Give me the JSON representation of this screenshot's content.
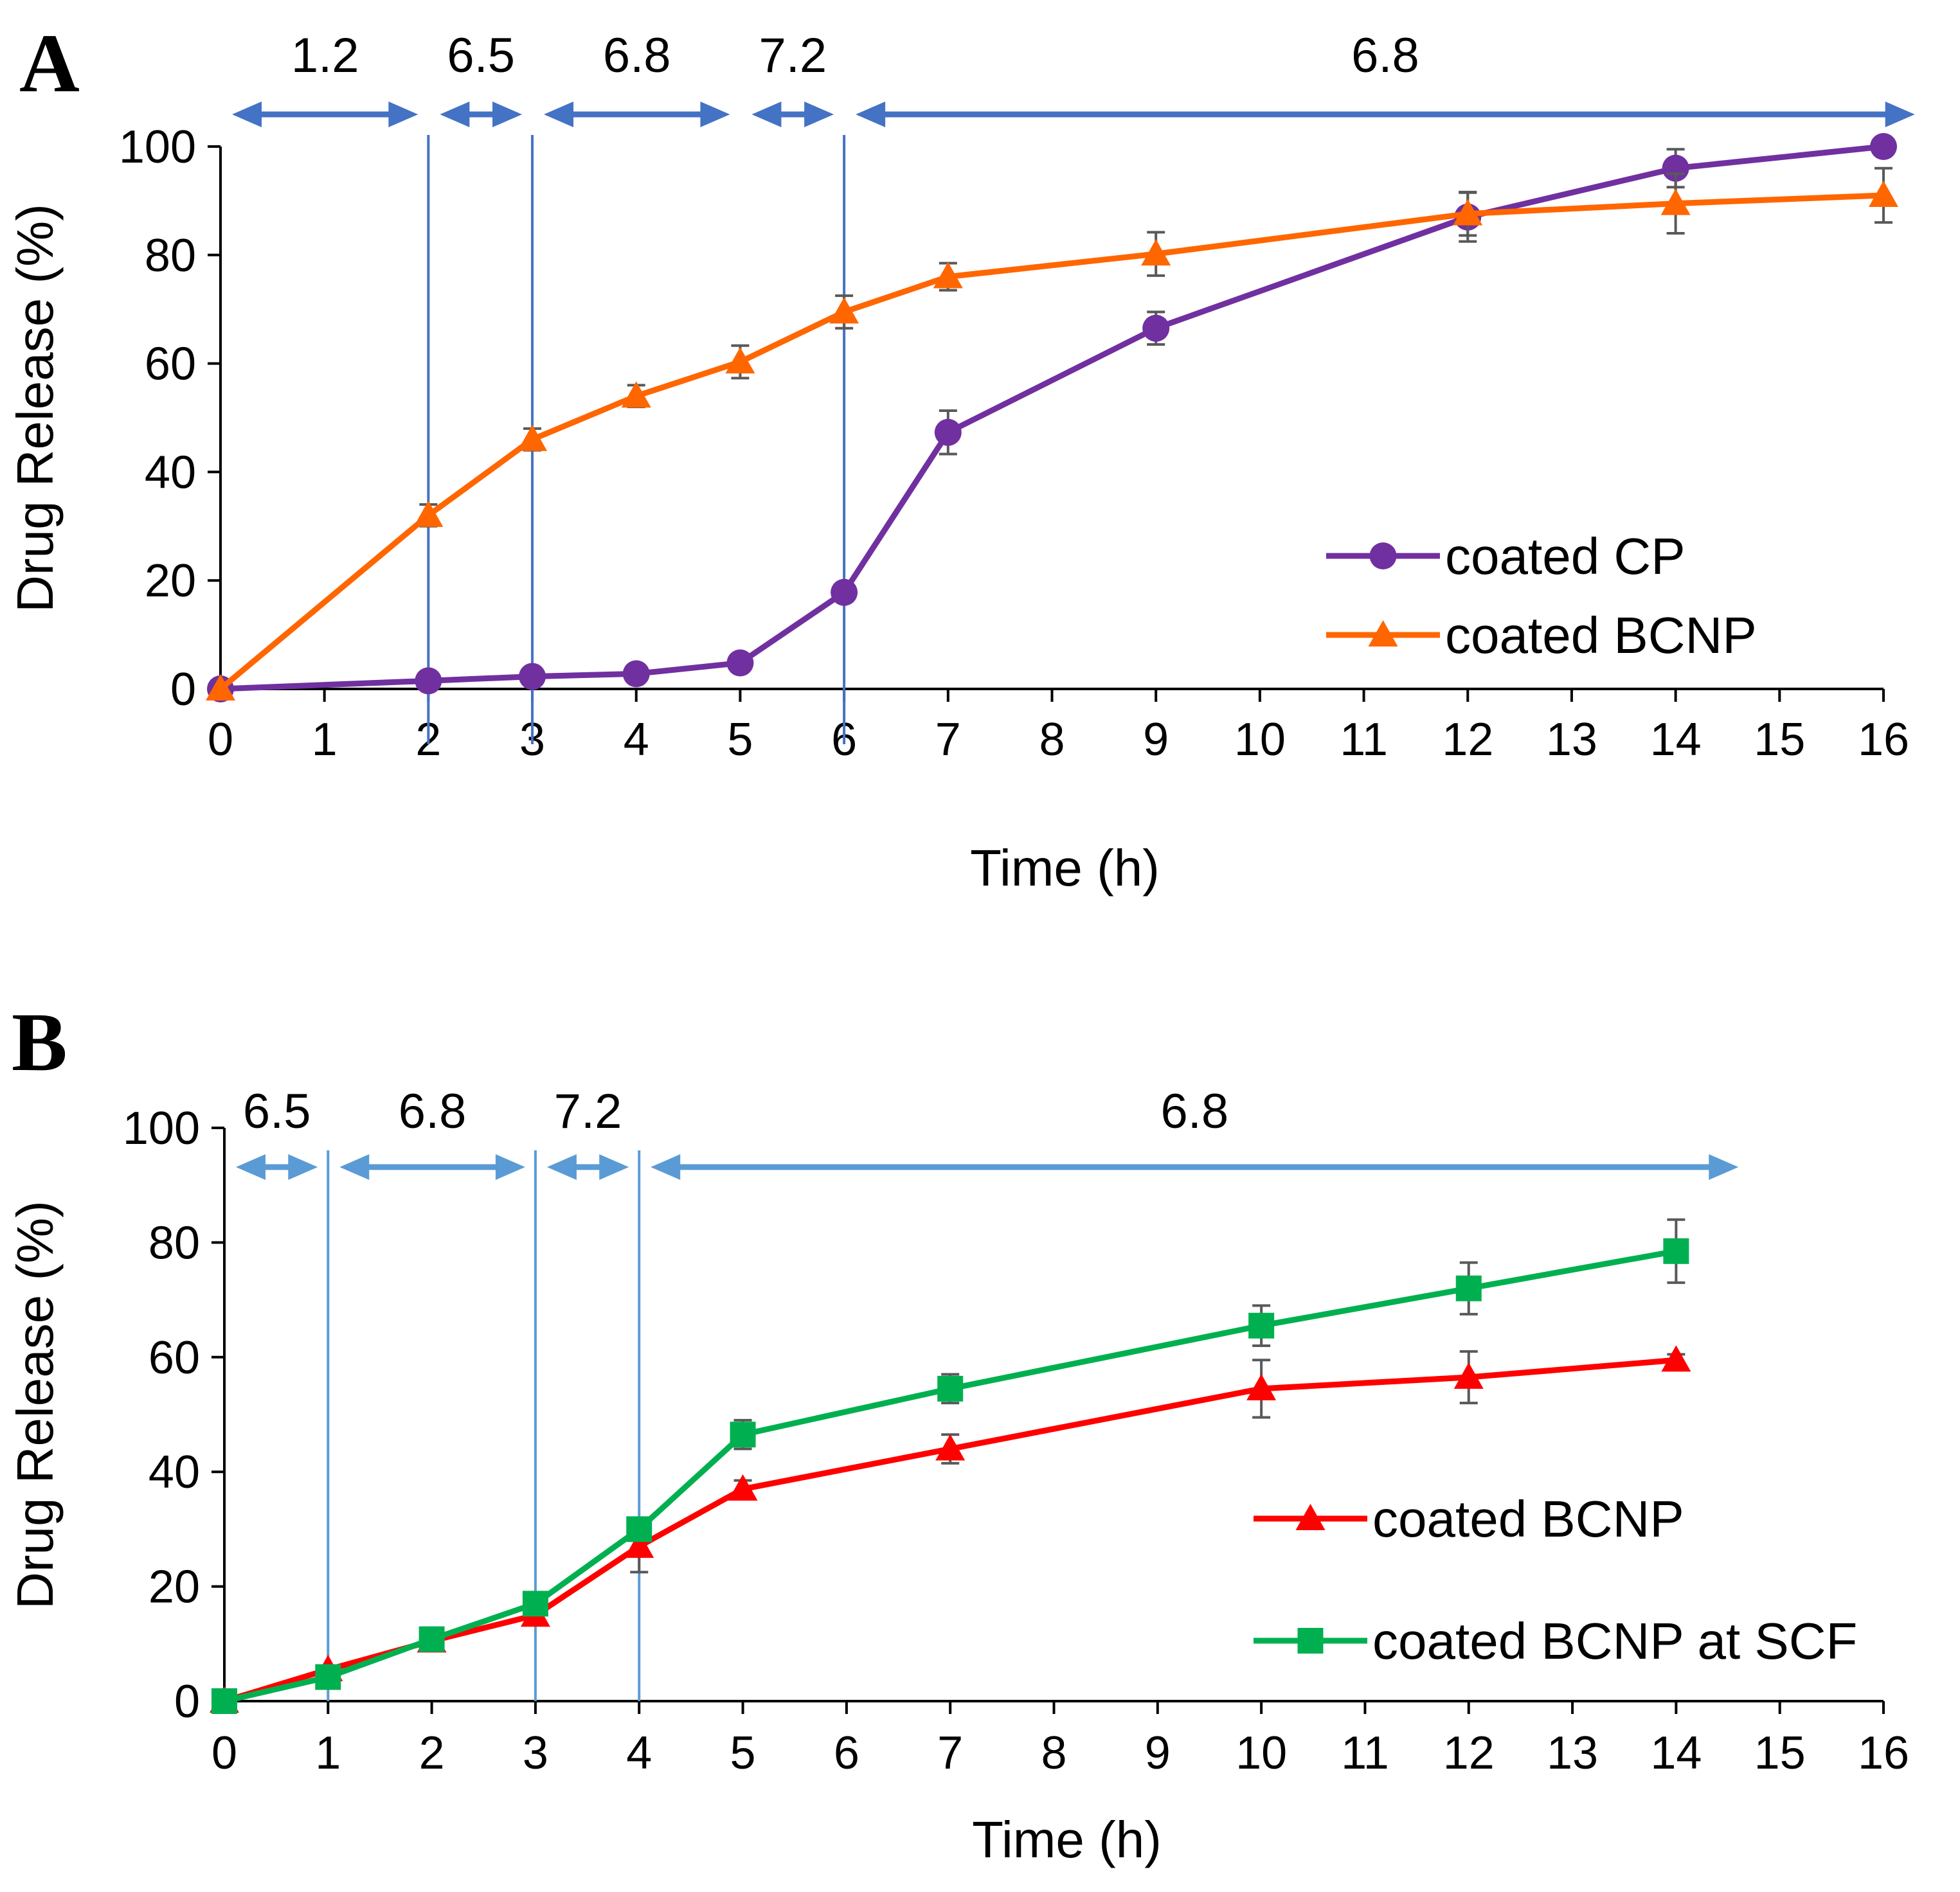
{
  "chart_data": [
    {
      "type": "line",
      "panel_label": "A",
      "xlabel": "Time (h)",
      "ylabel": "Drug Release (%)",
      "xlim": [
        0,
        16
      ],
      "ylim": [
        0,
        100
      ],
      "x_ticks": [
        0,
        1,
        2,
        3,
        4,
        5,
        6,
        7,
        8,
        9,
        10,
        11,
        12,
        13,
        14,
        15,
        16
      ],
      "y_ticks": [
        0,
        20,
        40,
        60,
        80,
        100
      ],
      "phase_boundaries": [
        2,
        3,
        6
      ],
      "ph_phases": [
        {
          "label": "1.2",
          "start": 0,
          "end": 2
        },
        {
          "label": "6.5",
          "start": 2,
          "end": 3
        },
        {
          "label": "6.8",
          "start": 3,
          "end": 5
        },
        {
          "label": "7.2",
          "start": 5,
          "end": 6
        },
        {
          "label": "6.8",
          "start": 6,
          "end": 16.4
        }
      ],
      "arrow_color": "#4472C4",
      "legend_position": "center-right",
      "series": [
        {
          "name": "coated CP",
          "color": "#7030A0",
          "marker": "circle",
          "x": [
            0,
            2,
            3,
            4,
            5,
            6,
            7,
            9,
            12,
            14,
            16
          ],
          "values": [
            0,
            1.5,
            2.3,
            2.8,
            4.8,
            17.8,
            47.3,
            66.5,
            87,
            96,
            100
          ],
          "errors": [
            0,
            0.5,
            0.5,
            0.5,
            0.8,
            1.5,
            4,
            3,
            4.5,
            3.5,
            1
          ]
        },
        {
          "name": "coated BCNP",
          "color": "#FF6600",
          "marker": "triangle",
          "x": [
            0,
            2,
            3,
            4,
            5,
            6,
            7,
            9,
            12,
            14,
            16
          ],
          "values": [
            0,
            32,
            46,
            54,
            60.3,
            69.5,
            76,
            80.2,
            87.6,
            89.5,
            91
          ],
          "errors": [
            0,
            2,
            2,
            2,
            3,
            3,
            2.5,
            4,
            4,
            5.5,
            5
          ]
        }
      ]
    },
    {
      "type": "line",
      "panel_label": "B",
      "xlabel": "Time (h)",
      "ylabel": "Drug Release (%)",
      "xlim": [
        0,
        16
      ],
      "ylim": [
        0,
        100
      ],
      "x_ticks": [
        0,
        1,
        2,
        3,
        4,
        5,
        6,
        7,
        8,
        9,
        10,
        11,
        12,
        13,
        14,
        15,
        16
      ],
      "y_ticks": [
        0,
        20,
        40,
        60,
        80,
        100
      ],
      "phase_boundaries": [
        1,
        3,
        4
      ],
      "ph_phases": [
        {
          "label": "6.5",
          "start": 0,
          "end": 1
        },
        {
          "label": "6.8",
          "start": 1,
          "end": 3
        },
        {
          "label": "7.2",
          "start": 3,
          "end": 4
        },
        {
          "label": "6.8",
          "start": 4,
          "end": 14.7
        }
      ],
      "arrow_color": "#5B9BD5",
      "legend_position": "bottom-right",
      "series": [
        {
          "name": "coated BCNP",
          "color": "#FF0000",
          "marker": "triangle",
          "x": [
            0,
            1,
            2,
            3,
            4,
            5,
            7,
            10,
            12,
            14
          ],
          "values": [
            0,
            5.5,
            10.5,
            15,
            27,
            37,
            44,
            54.5,
            56.5,
            59.5
          ],
          "errors": [
            0,
            0.5,
            1,
            1.5,
            4.5,
            1.5,
            2.5,
            5,
            4.5,
            1
          ]
        },
        {
          "name": "coated BCNP at SCF",
          "color": "#00B050",
          "marker": "square",
          "x": [
            0,
            1,
            2,
            3,
            4,
            5,
            7,
            10,
            12,
            14
          ],
          "values": [
            0,
            4.2,
            10.8,
            17,
            30,
            46.5,
            54.5,
            65.5,
            72,
            78.5
          ],
          "errors": [
            0,
            1,
            1,
            1,
            2,
            2.5,
            2.5,
            3.5,
            4.5,
            5.5
          ]
        }
      ]
    }
  ]
}
